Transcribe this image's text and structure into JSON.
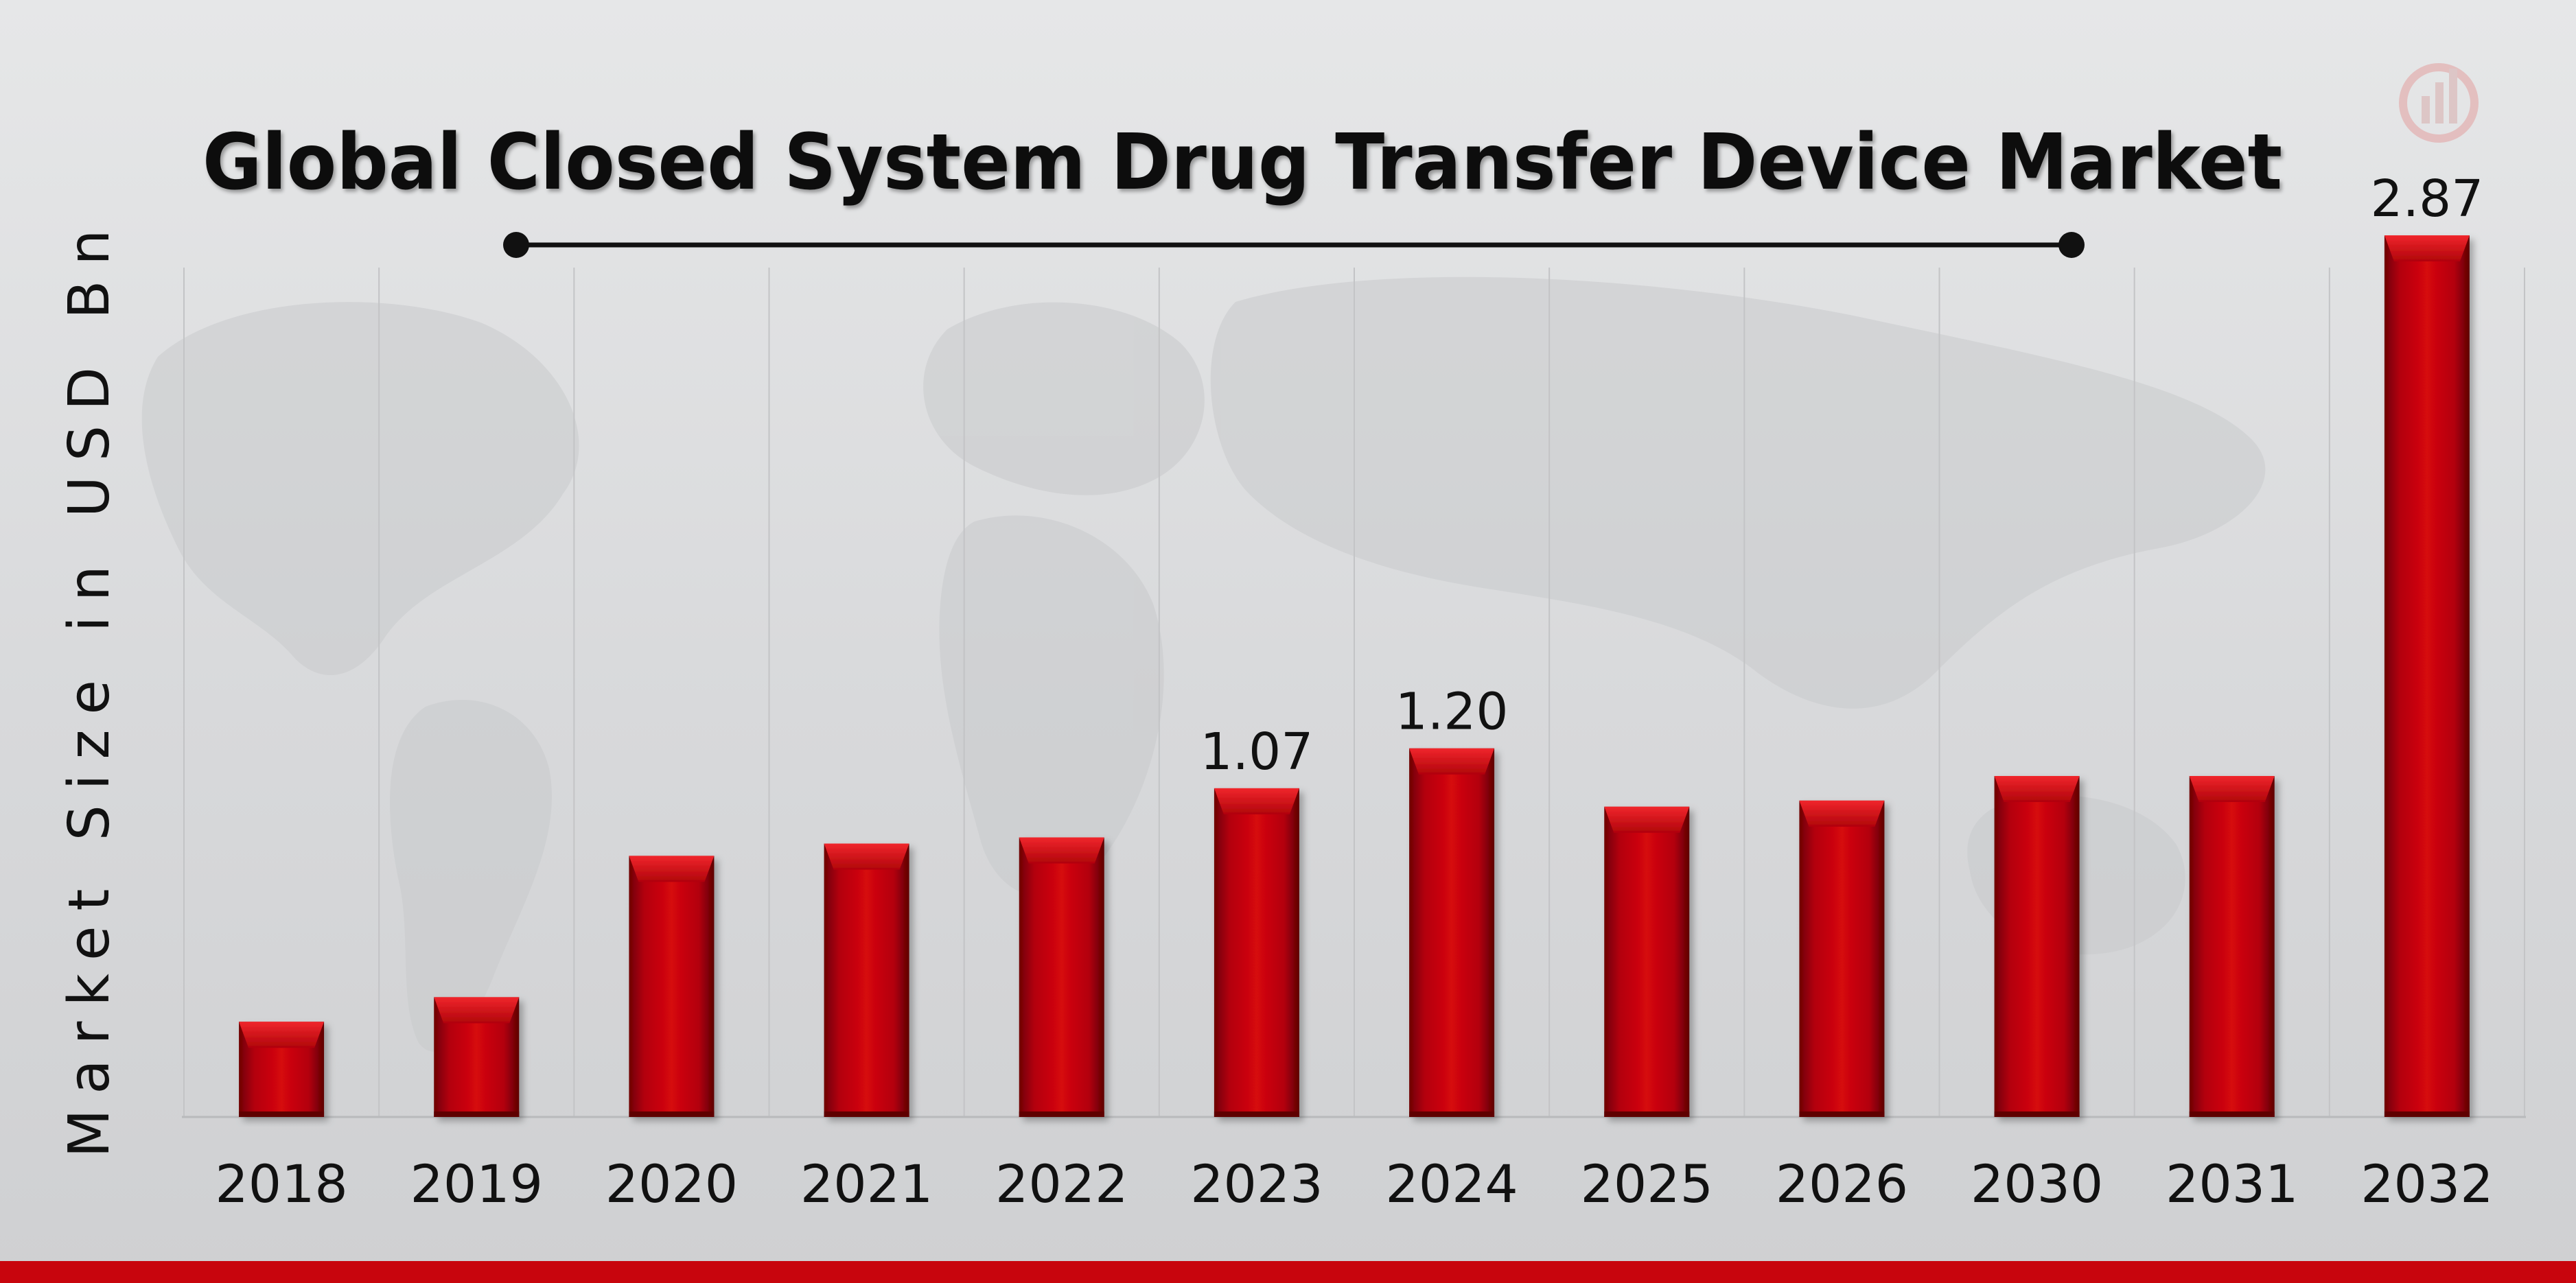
{
  "chart_data": {
    "type": "bar",
    "title": "Global Closed System Drug Transfer Device Market",
    "xlabel": "",
    "ylabel": "Market Size in USD Bn",
    "categories": [
      "2018",
      "2019",
      "2020",
      "2021",
      "2022",
      "2023",
      "2024",
      "2025",
      "2026",
      "2030",
      "2031",
      "2032"
    ],
    "values": [
      0.31,
      0.39,
      0.85,
      0.89,
      0.91,
      1.07,
      1.2,
      1.01,
      1.03,
      1.11,
      1.11,
      2.87
    ],
    "data_labels": {
      "2023": "1.07",
      "2024": "1.20",
      "2032": "2.87"
    },
    "ylim": [
      0,
      3.0
    ],
    "grid": false,
    "colors": {
      "bar": "#c8050d",
      "bar_dark": "#7a0006",
      "bar_light": "#e2161d",
      "accent_bottom": "#c8050d",
      "logo": "#e3a6a6"
    }
  }
}
